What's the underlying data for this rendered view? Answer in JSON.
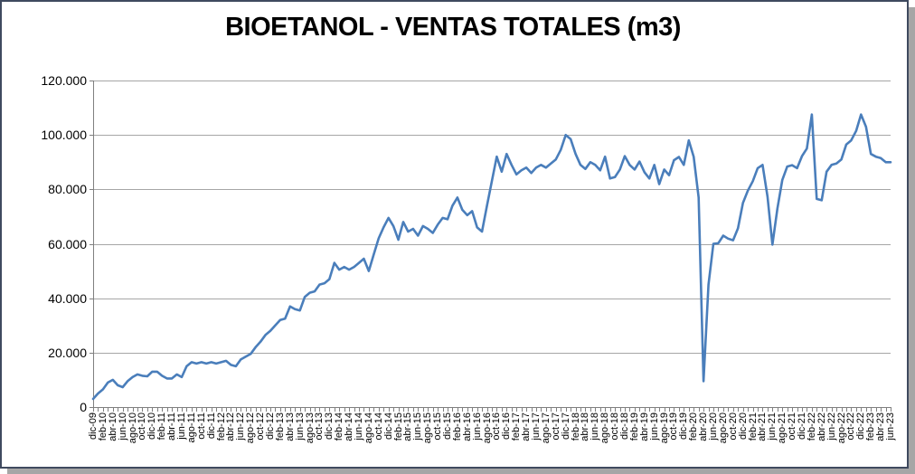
{
  "title": "BIOETANOL - VENTAS TOTALES (m3)",
  "colors": {
    "line": "#4A7EBB",
    "gridline": "#A6A6A6",
    "axis": "#7F7F7F",
    "text": "#000000",
    "frame_border": "#3F4A5F",
    "shadow": "#A6A6A6",
    "background": "#FFFFFF"
  },
  "chart_data": {
    "type": "line",
    "title": "BIOETANOL - VENTAS TOTALES (m3)",
    "ylabel": "",
    "xlabel": "",
    "ylim": [
      0,
      120000
    ],
    "y_tick_step": 20000,
    "y_tick_labels": [
      "0",
      "20.000",
      "40.000",
      "60.000",
      "80.000",
      "100.000",
      "120.000"
    ],
    "grid": true,
    "legend": false,
    "x_label_interval": 2,
    "x_tick_labels": [
      "dic-09",
      "feb-10",
      "abr-10",
      "jun-10",
      "ago-10",
      "oct-10",
      "dic-10",
      "feb-11",
      "abr-11",
      "jun-11",
      "ago-11",
      "oct-11",
      "dic-11",
      "feb-12",
      "abr-12",
      "jun-12",
      "ago-12",
      "oct-12",
      "dic-12",
      "feb-13",
      "abr-13",
      "jun-13",
      "ago-13",
      "oct-13",
      "dic-13",
      "feb-14",
      "abr-14",
      "jun-14",
      "ago-14",
      "oct-14",
      "dic-14",
      "feb-15",
      "abr-15",
      "jun-15",
      "ago-15",
      "oct-15",
      "dic-15",
      "feb-16",
      "abr-16",
      "jun-16",
      "ago-16",
      "oct-16",
      "dic-16",
      "feb-17",
      "abr-17",
      "jun-17",
      "ago-17",
      "oct-17",
      "dic-17",
      "feb-18",
      "abr-18",
      "jun-18",
      "ago-18",
      "oct-18",
      "dic-18",
      "feb-19",
      "abr-19",
      "jun-19",
      "ago-19",
      "oct-19",
      "dic-19",
      "feb-20",
      "abr-20",
      "jun-20",
      "ago-20",
      "oct-20",
      "dic-20",
      "feb-21",
      "abr-21",
      "jun-21",
      "ago-21",
      "oct-21",
      "dic-21",
      "feb-22",
      "abr-22",
      "jun-22",
      "ago-22",
      "oct-22",
      "dic-22",
      "feb-23",
      "abr-23",
      "jun-23"
    ],
    "x": [
      "dic-09",
      "ene-10",
      "feb-10",
      "mar-10",
      "abr-10",
      "may-10",
      "jun-10",
      "jul-10",
      "ago-10",
      "sep-10",
      "oct-10",
      "nov-10",
      "dic-10",
      "ene-11",
      "feb-11",
      "mar-11",
      "abr-11",
      "may-11",
      "jun-11",
      "jul-11",
      "ago-11",
      "sep-11",
      "oct-11",
      "nov-11",
      "dic-11",
      "ene-12",
      "feb-12",
      "mar-12",
      "abr-12",
      "may-12",
      "jun-12",
      "jul-12",
      "ago-12",
      "sep-12",
      "oct-12",
      "nov-12",
      "dic-12",
      "ene-13",
      "feb-13",
      "mar-13",
      "abr-13",
      "may-13",
      "jun-13",
      "jul-13",
      "ago-13",
      "sep-13",
      "oct-13",
      "nov-13",
      "dic-13",
      "ene-14",
      "feb-14",
      "mar-14",
      "abr-14",
      "may-14",
      "jun-14",
      "jul-14",
      "ago-14",
      "sep-14",
      "oct-14",
      "nov-14",
      "dic-14",
      "ene-15",
      "feb-15",
      "mar-15",
      "abr-15",
      "may-15",
      "jun-15",
      "jul-15",
      "ago-15",
      "sep-15",
      "oct-15",
      "nov-15",
      "dic-15",
      "ene-16",
      "feb-16",
      "mar-16",
      "abr-16",
      "may-16",
      "jun-16",
      "jul-16",
      "ago-16",
      "sep-16",
      "oct-16",
      "nov-16",
      "dic-16",
      "ene-17",
      "feb-17",
      "mar-17",
      "abr-17",
      "may-17",
      "jun-17",
      "jul-17",
      "ago-17",
      "sep-17",
      "oct-17",
      "nov-17",
      "dic-17",
      "ene-18",
      "feb-18",
      "mar-18",
      "abr-18",
      "may-18",
      "jun-18",
      "jul-18",
      "ago-18",
      "sep-18",
      "oct-18",
      "nov-18",
      "dic-18",
      "ene-19",
      "feb-19",
      "mar-19",
      "abr-19",
      "may-19",
      "jun-19",
      "jul-19",
      "ago-19",
      "sep-19",
      "oct-19",
      "nov-19",
      "dic-19",
      "ene-20",
      "feb-20",
      "mar-20",
      "abr-20",
      "may-20",
      "jun-20",
      "jul-20",
      "ago-20",
      "sep-20",
      "oct-20",
      "nov-20",
      "dic-20",
      "ene-21",
      "feb-21",
      "mar-21",
      "abr-21",
      "may-21",
      "jun-21",
      "jul-21",
      "ago-21",
      "sep-21",
      "oct-21",
      "nov-21",
      "dic-21",
      "ene-22",
      "feb-22",
      "mar-22",
      "abr-22",
      "may-22",
      "jun-22",
      "jul-22",
      "ago-22",
      "sep-22",
      "oct-22",
      "nov-22",
      "dic-22",
      "ene-23",
      "feb-23",
      "mar-23",
      "abr-23",
      "may-23",
      "jun-23"
    ],
    "values": [
      3000,
      5000,
      6500,
      9000,
      10000,
      8000,
      7300,
      9500,
      11000,
      12000,
      11500,
      11300,
      13000,
      13000,
      11500,
      10500,
      10500,
      12000,
      11000,
      15000,
      16500,
      16000,
      16500,
      16000,
      16500,
      16000,
      16500,
      17000,
      15500,
      15000,
      17500,
      18500,
      19500,
      22000,
      24000,
      26500,
      28000,
      30000,
      32000,
      32500,
      37000,
      36000,
      35500,
      40500,
      42000,
      42500,
      45000,
      45500,
      47000,
      53000,
      50500,
      51500,
      50500,
      51500,
      53000,
      54500,
      50000,
      56000,
      62000,
      66000,
      69500,
      66500,
      61500,
      68000,
      64500,
      65500,
      63000,
      66500,
      65500,
      64000,
      67000,
      69500,
      69000,
      74000,
      77000,
      72500,
      70500,
      72000,
      66000,
      64500,
      74000,
      83000,
      92000,
      86500,
      93000,
      89000,
      85500,
      87000,
      88000,
      86000,
      88000,
      89000,
      88000,
      89500,
      91000,
      94500,
      100000,
      98500,
      93000,
      89000,
      87500,
      90000,
      89000,
      87000,
      92000,
      84000,
      84500,
      87300,
      92200,
      89000,
      87300,
      90200,
      86300,
      84000,
      89000,
      81900,
      87300,
      85200,
      90700,
      91900,
      89000,
      98000,
      92000,
      77000,
      9500,
      45000,
      60000,
      60200,
      63000,
      61900,
      61300,
      65700,
      75000,
      79500,
      83000,
      87800,
      89000,
      77300,
      59700,
      72900,
      83400,
      88400,
      88900,
      87800,
      92200,
      95000,
      107500,
      76500,
      76000,
      86500,
      89000,
      89500,
      91000,
      96500,
      98000,
      101500,
      107500,
      103000,
      93000,
      92000,
      91500,
      90000,
      90000
    ]
  }
}
